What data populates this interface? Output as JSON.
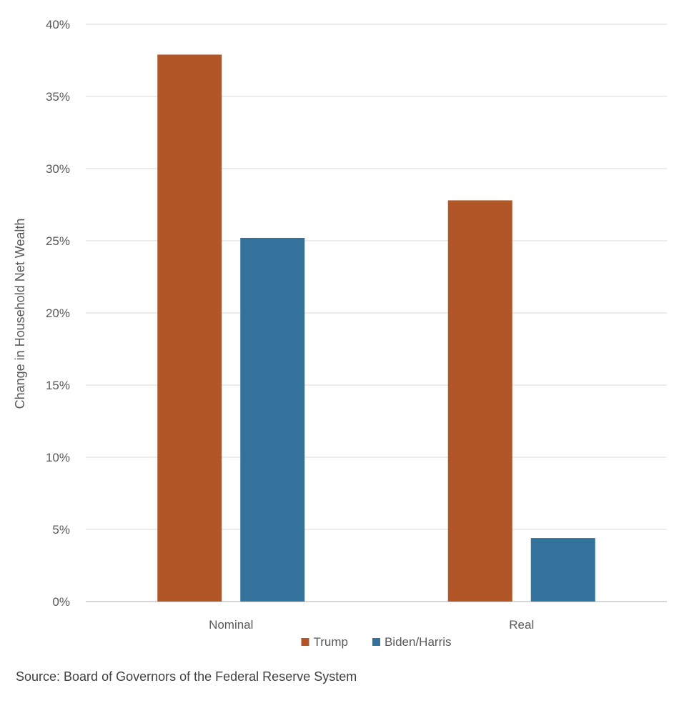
{
  "chart_data": {
    "type": "bar",
    "categories": [
      "Nominal",
      "Real"
    ],
    "series": [
      {
        "name": "Trump",
        "values": [
          37.9,
          27.8
        ],
        "color": "#B05627"
      },
      {
        "name": "Biden/Harris",
        "values": [
          25.2,
          4.4
        ],
        "color": "#33729B"
      }
    ],
    "ylabel": "Change in Household Net Wealth",
    "xlabel": "",
    "ylim": [
      0,
      40
    ],
    "yticks": [
      0,
      5,
      10,
      15,
      20,
      25,
      30,
      35,
      40
    ],
    "ytick_labels": [
      "0%",
      "5%",
      "10%",
      "15%",
      "20%",
      "25%",
      "30%",
      "35%",
      "40%"
    ],
    "grid": true,
    "legend_position": "bottom",
    "gridline_color": "#D9D9D9"
  },
  "source": "Source: Board of Governors of the Federal Reserve System"
}
